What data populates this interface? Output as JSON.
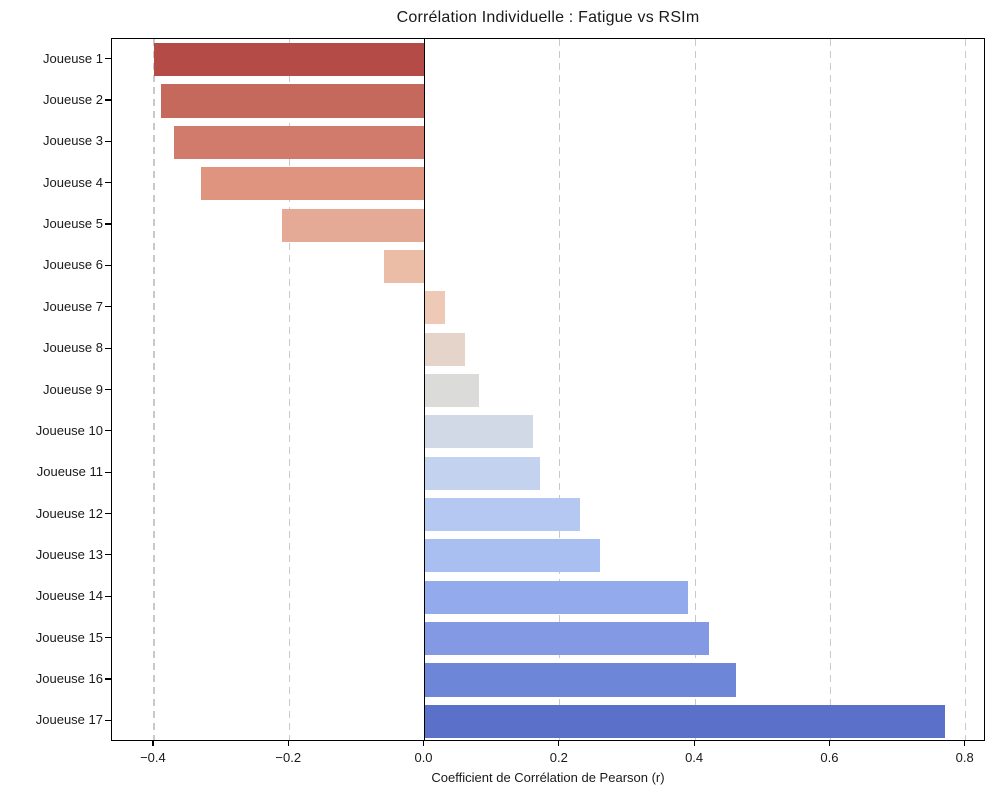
{
  "chart_data": {
    "type": "bar",
    "orientation": "horizontal",
    "title": "Corrélation Individuelle : Fatigue vs RSIm",
    "xlabel": "Coefficient de Corrélation de Pearson (r)",
    "ylabel": "",
    "categories": [
      "Joueuse 1",
      "Joueuse 2",
      "Joueuse 3",
      "Joueuse 4",
      "Joueuse 5",
      "Joueuse 6",
      "Joueuse 7",
      "Joueuse 8",
      "Joueuse 9",
      "Joueuse 10",
      "Joueuse 11",
      "Joueuse 12",
      "Joueuse 13",
      "Joueuse 14",
      "Joueuse 15",
      "Joueuse 16",
      "Joueuse 17"
    ],
    "values": [
      -0.4,
      -0.39,
      -0.37,
      -0.33,
      -0.21,
      -0.06,
      0.03,
      0.06,
      0.08,
      0.16,
      0.17,
      0.23,
      0.26,
      0.39,
      0.42,
      0.46,
      0.77
    ],
    "bar_colors": [
      "#b44b47",
      "#c5695c",
      "#d17b6c",
      "#de947f",
      "#e5aa95",
      "#ebbda7",
      "#eec9b5",
      "#e4d4c9",
      "#dbdcda",
      "#d1d9e7",
      "#c3d2ee",
      "#b5c8f1",
      "#a9bef1",
      "#93aaec",
      "#8399e3",
      "#6e86d8",
      "#5b70c9"
    ],
    "colormap": "coolwarm (negative=red, positive=blue)",
    "xlim": [
      -0.462,
      0.83
    ],
    "xticks": [
      -0.4,
      -0.2,
      0.0,
      0.2,
      0.4,
      0.6,
      0.8
    ],
    "xtick_labels": [
      "−0.4",
      "−0.2",
      "0.0",
      "0.2",
      "0.4",
      "0.6",
      "0.8"
    ],
    "grid": "vertical dashed gridlines at x ticks",
    "zero_line": true,
    "zero_line_color": "#000000",
    "gridline_color": "#c9c9c9",
    "frame_color": "#000000",
    "background_color": "#ffffff"
  }
}
